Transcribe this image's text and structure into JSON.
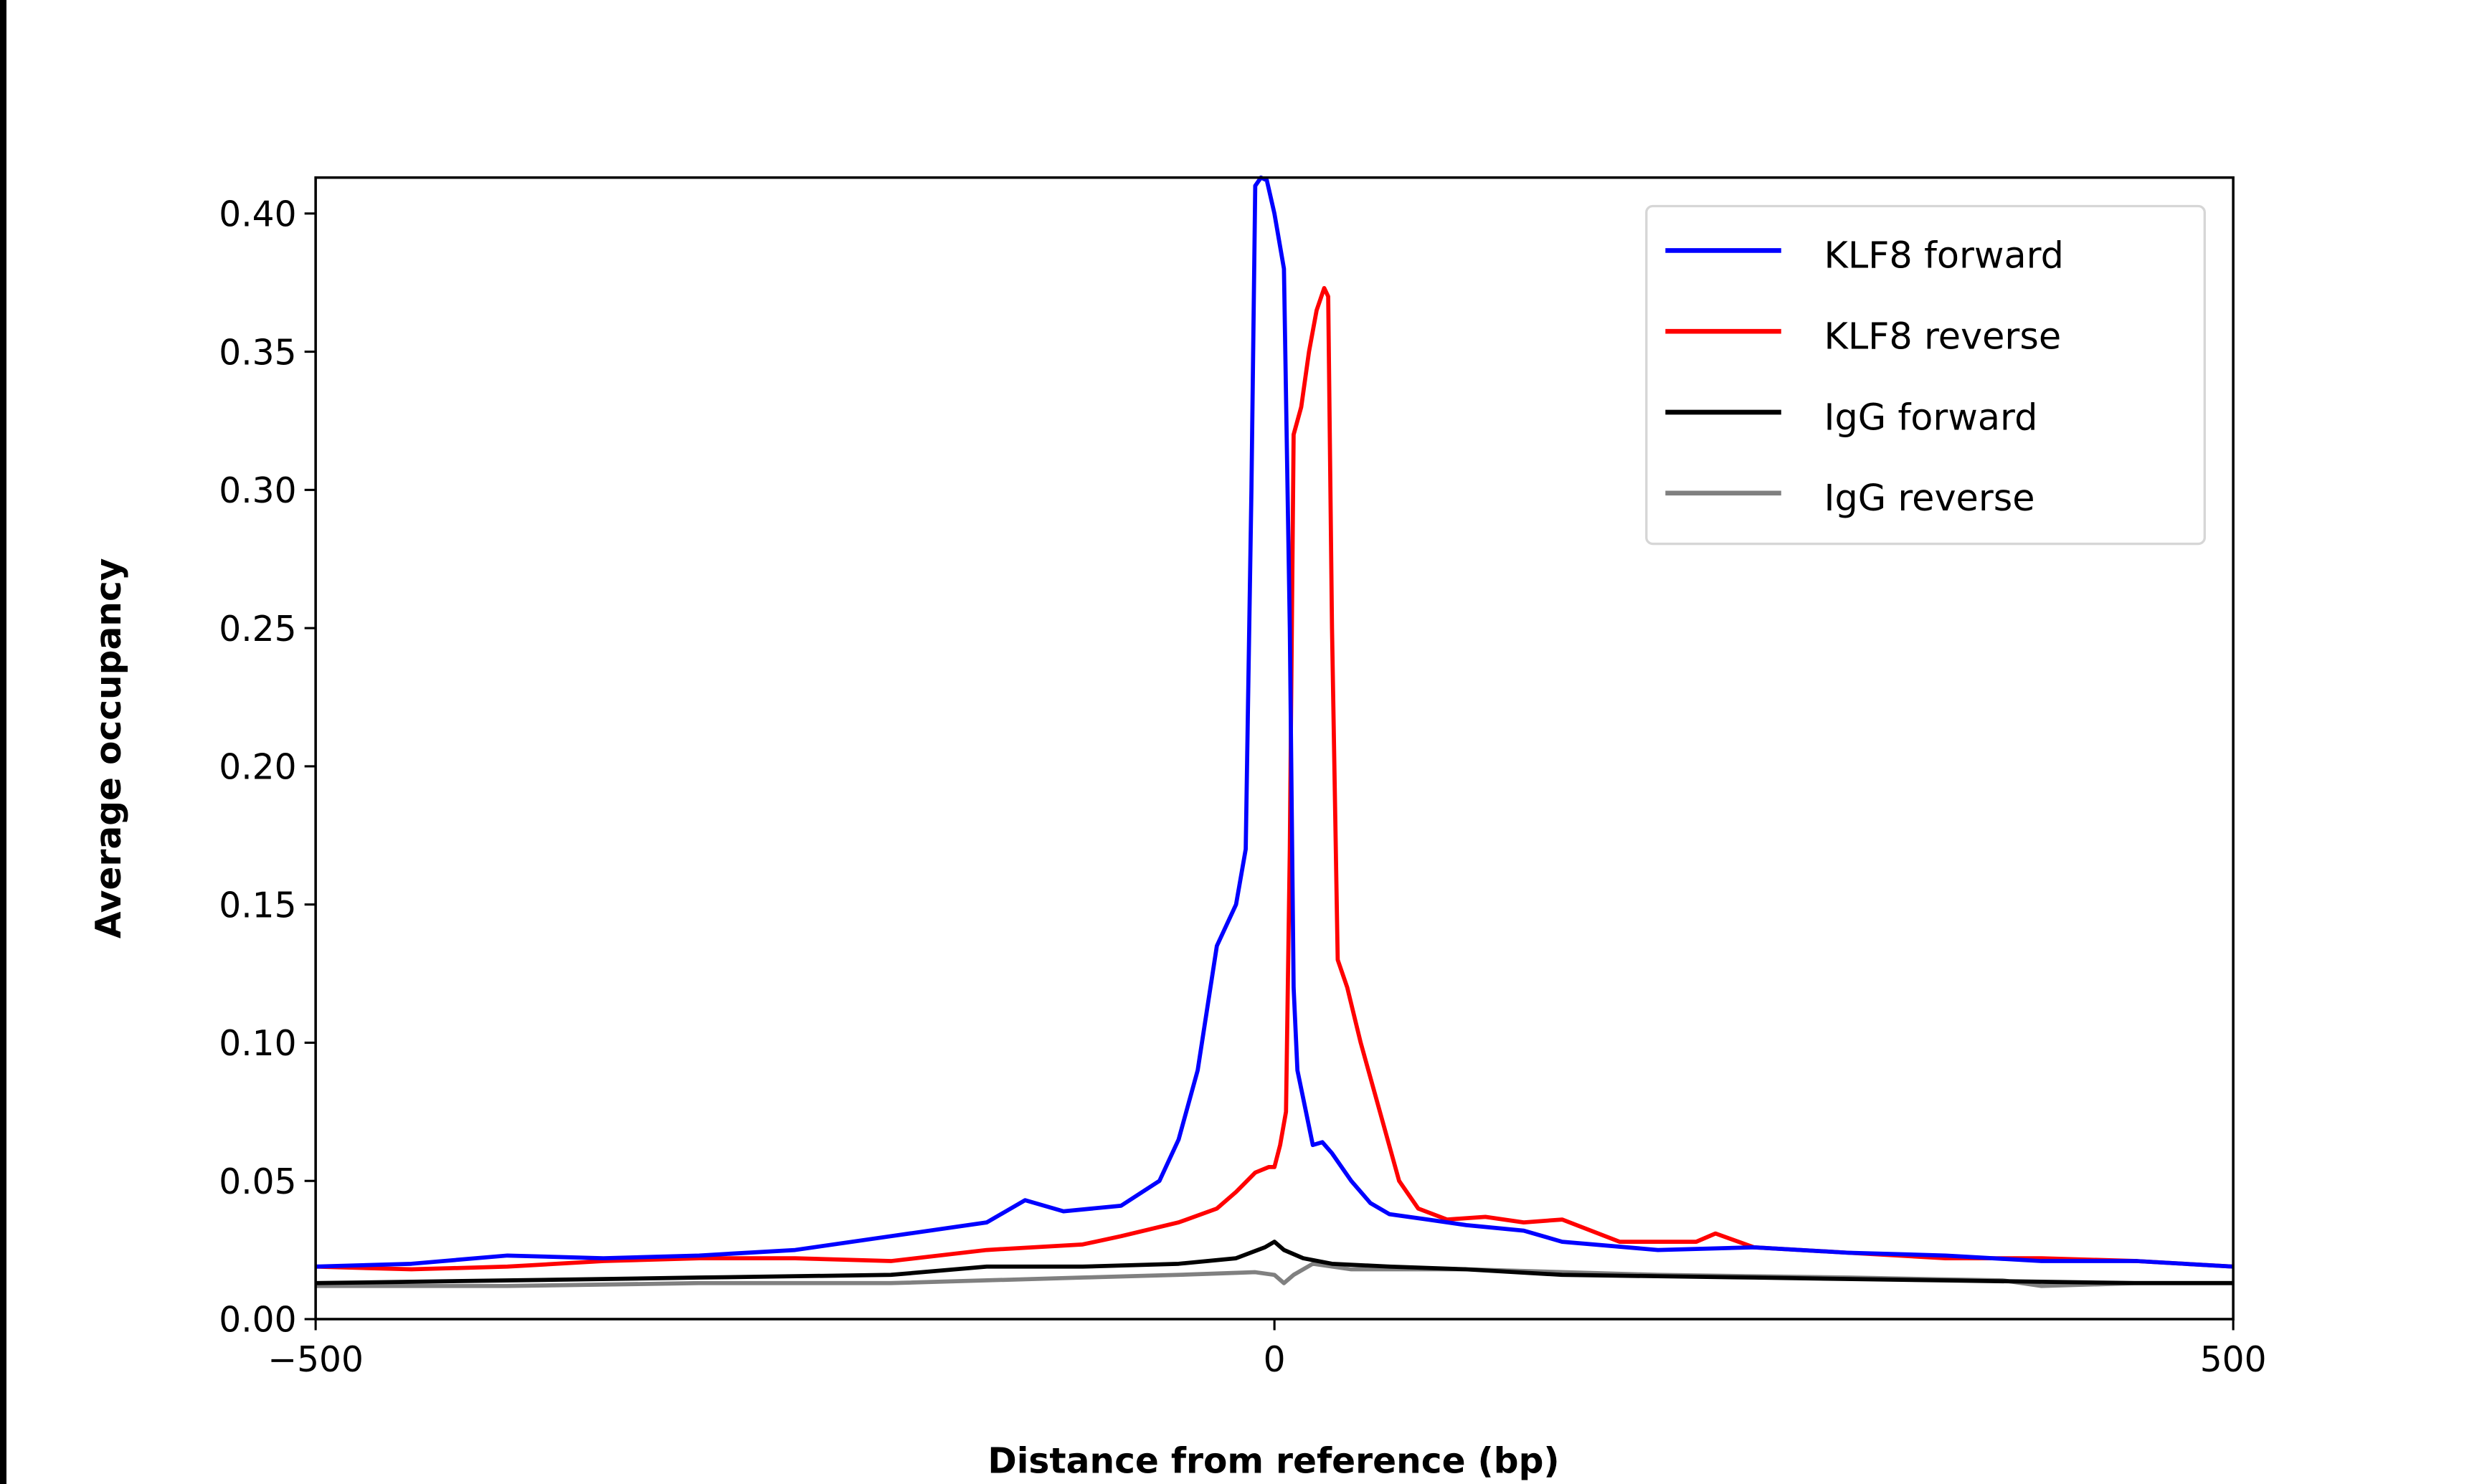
{
  "chart_data": {
    "type": "line",
    "title": "",
    "xlabel": "Distance from reference (bp)",
    "ylabel": "Average occupancy",
    "xlim": [
      -500,
      500
    ],
    "ylim": [
      0,
      0.413
    ],
    "xticks": [
      -500,
      0,
      500
    ],
    "xtick_labels": [
      "−500",
      "0",
      "500"
    ],
    "yticks": [
      0,
      0.05,
      0.1,
      0.15,
      0.2,
      0.25,
      0.3,
      0.35,
      0.4
    ],
    "ytick_labels": [
      "0.00",
      "0.05",
      "0.10",
      "0.15",
      "0.20",
      "0.25",
      "0.30",
      "0.35",
      "0.40"
    ],
    "grid": false,
    "legend_position": "top-right",
    "series": [
      {
        "name": "KLF8 forward",
        "color": "#0000ff",
        "x": [
          -500,
          -450,
          -400,
          -350,
          -300,
          -250,
          -200,
          -150,
          -130,
          -110,
          -80,
          -60,
          -50,
          -40,
          -30,
          -20,
          -15,
          -12,
          -10,
          -7,
          -4,
          0,
          5,
          8,
          10,
          12,
          15,
          20,
          25,
          30,
          40,
          50,
          60,
          80,
          100,
          130,
          150,
          200,
          250,
          300,
          350,
          400,
          450,
          500
        ],
        "y": [
          0.019,
          0.02,
          0.023,
          0.022,
          0.023,
          0.025,
          0.03,
          0.035,
          0.043,
          0.039,
          0.041,
          0.05,
          0.065,
          0.09,
          0.135,
          0.15,
          0.17,
          0.3,
          0.41,
          0.413,
          0.412,
          0.4,
          0.38,
          0.25,
          0.12,
          0.09,
          0.08,
          0.063,
          0.064,
          0.06,
          0.05,
          0.042,
          0.038,
          0.036,
          0.034,
          0.032,
          0.028,
          0.025,
          0.026,
          0.024,
          0.023,
          0.021,
          0.021,
          0.019
        ]
      },
      {
        "name": "KLF8 reverse",
        "color": "#ff0000",
        "x": [
          -500,
          -450,
          -400,
          -350,
          -300,
          -250,
          -200,
          -150,
          -100,
          -80,
          -50,
          -30,
          -20,
          -10,
          -3,
          0,
          3,
          6,
          8,
          10,
          14,
          18,
          22,
          26,
          28,
          30,
          33,
          38,
          45,
          55,
          65,
          75,
          90,
          110,
          130,
          150,
          180,
          220,
          230,
          250,
          300,
          350,
          400,
          450,
          500
        ],
        "y": [
          0.019,
          0.018,
          0.019,
          0.021,
          0.022,
          0.022,
          0.021,
          0.025,
          0.027,
          0.03,
          0.035,
          0.04,
          0.046,
          0.053,
          0.055,
          0.055,
          0.063,
          0.075,
          0.17,
          0.32,
          0.33,
          0.35,
          0.365,
          0.373,
          0.37,
          0.25,
          0.13,
          0.12,
          0.1,
          0.075,
          0.05,
          0.04,
          0.036,
          0.037,
          0.035,
          0.036,
          0.028,
          0.028,
          0.031,
          0.026,
          0.024,
          0.022,
          0.022,
          0.021,
          0.019
        ]
      },
      {
        "name": "IgG forward",
        "color": "#000000",
        "x": [
          -500,
          -400,
          -300,
          -200,
          -150,
          -100,
          -50,
          -20,
          -5,
          0,
          5,
          15,
          30,
          60,
          100,
          150,
          250,
          350,
          450,
          500
        ],
        "y": [
          0.013,
          0.014,
          0.015,
          0.016,
          0.019,
          0.019,
          0.02,
          0.022,
          0.026,
          0.028,
          0.025,
          0.022,
          0.02,
          0.019,
          0.018,
          0.016,
          0.015,
          0.014,
          0.013,
          0.013
        ]
      },
      {
        "name": "IgG reverse",
        "color": "#808080",
        "x": [
          -500,
          -400,
          -300,
          -200,
          -100,
          -50,
          -10,
          0,
          5,
          10,
          20,
          40,
          100,
          200,
          300,
          380,
          400,
          450,
          500
        ],
        "y": [
          0.012,
          0.012,
          0.013,
          0.013,
          0.015,
          0.016,
          0.017,
          0.016,
          0.013,
          0.016,
          0.02,
          0.018,
          0.018,
          0.016,
          0.015,
          0.014,
          0.012,
          0.013,
          0.013
        ]
      }
    ]
  }
}
